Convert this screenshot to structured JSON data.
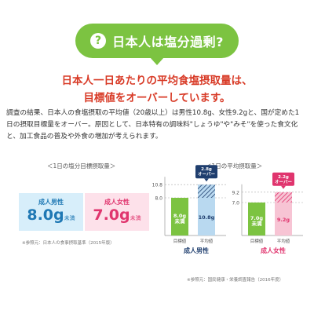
{
  "header": {
    "icon": "question-icon",
    "icon_glyph": "?",
    "title": "日本人は塩分過剰?"
  },
  "headline": {
    "line1": "日本人一日あたりの平均食塩摂取量は、",
    "line2": "目標値をオーバーしています。"
  },
  "body": {
    "line1": "調査の結果、日本人の食塩摂取の平均値（20歳以上）は男性10.8g、女性9.2gと、国が定めた1",
    "line2": "日の摂取目標量をオーバー。原因として、日本特有の調味料\"しょうゆ\"や\"みそ\"を使った食文化",
    "line3": "と、加工食品の普及や外食の増加が考えられます。"
  },
  "target": {
    "caption": "＜1日の塩分目標摂取量＞",
    "male_label": "成人男性",
    "male_value": "8.0",
    "female_label": "成人女性",
    "female_value": "7.0",
    "unit": "g",
    "suffix": "未満",
    "footnote": "※参照元：日本人の食事摂取基準（2015年版）"
  },
  "average": {
    "caption": "＜1日の平均摂取量＞",
    "footnote": "※参照元：国民健康・栄養調査報告（2016年度）"
  },
  "chart_data": [
    {
      "type": "bar",
      "group": "成人男性",
      "categories": [
        "目標値",
        "平均値"
      ],
      "values": [
        8.0,
        10.8
      ],
      "value_labels": [
        "8.0g\n未満",
        "10.8g"
      ],
      "excess": 2.8,
      "excess_label": "2.8g\nオーバー",
      "ticks": [
        10.8,
        8.0
      ],
      "tick_labels": [
        "10.8",
        "8.0"
      ],
      "colors": {
        "target": "#7cc341",
        "average": "#b9d9f0",
        "excess": "#1f3e6e"
      }
    },
    {
      "type": "bar",
      "group": "成人女性",
      "categories": [
        "目標値",
        "平均値"
      ],
      "values": [
        7.0,
        9.2
      ],
      "value_labels": [
        "7.0g\n未満",
        "9.2g"
      ],
      "excess": 2.2,
      "excess_label": "2.2g\nオーバー",
      "ticks": [
        9.2,
        7.0
      ],
      "tick_labels": [
        "9.2",
        "7.0"
      ],
      "colors": {
        "target": "#7cc341",
        "average": "#f7c4d4",
        "excess": "#e0356e"
      }
    }
  ]
}
